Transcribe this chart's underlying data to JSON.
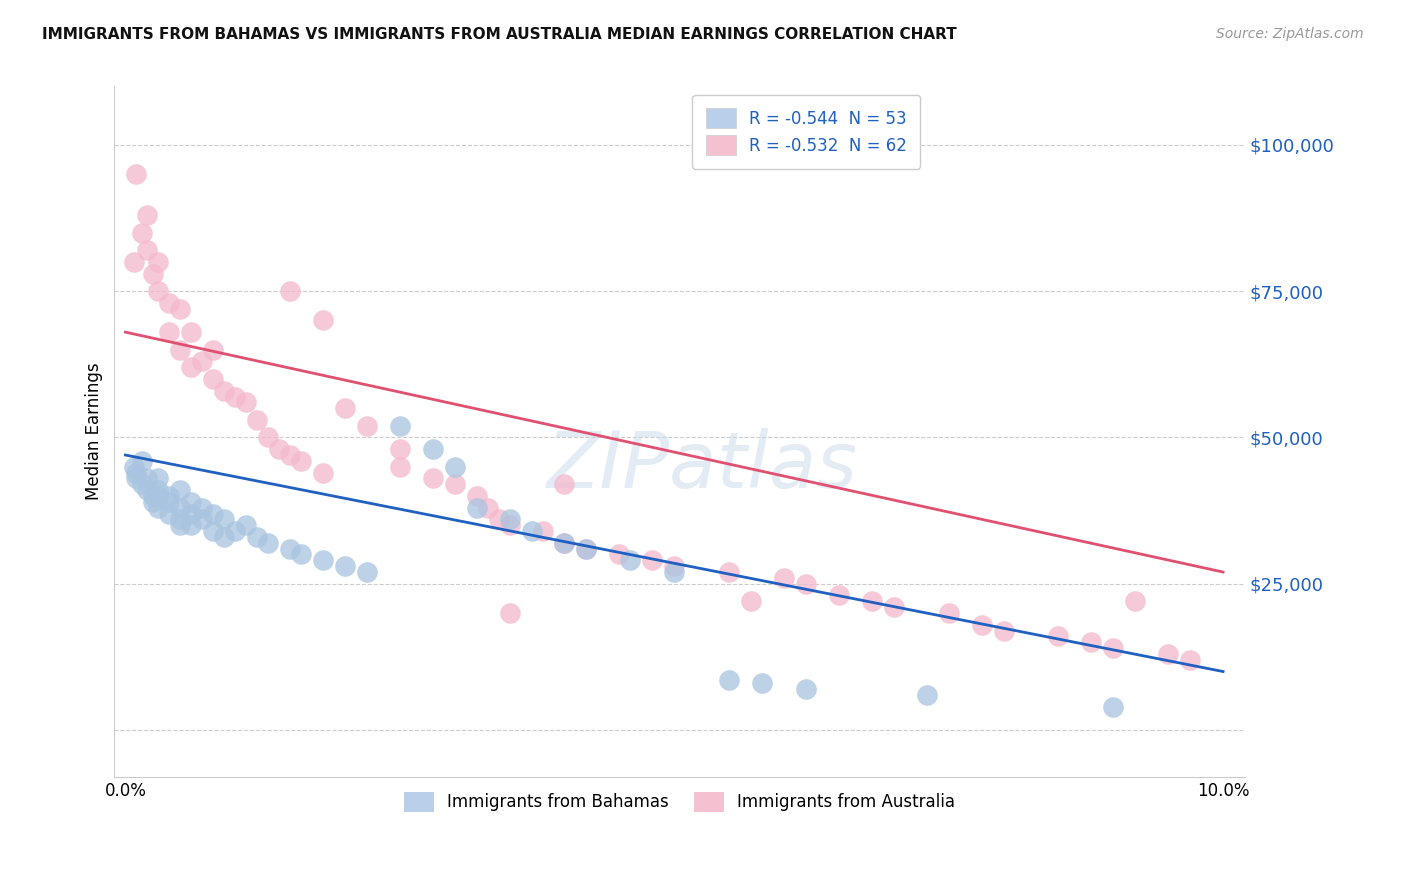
{
  "title": "IMMIGRANTS FROM BAHAMAS VS IMMIGRANTS FROM AUSTRALIA MEDIAN EARNINGS CORRELATION CHART",
  "source": "Source: ZipAtlas.com",
  "ylabel": "Median Earnings",
  "ytick_vals": [
    0,
    25000,
    50000,
    75000,
    100000
  ],
  "ytick_labels": [
    "",
    "$25,000",
    "$50,000",
    "$75,000",
    "$100,000"
  ],
  "xlim": [
    -0.001,
    0.102
  ],
  "ylim": [
    -8000,
    110000
  ],
  "legend_labels": [
    "R = -0.544  N = 53",
    "R = -0.532  N = 62"
  ],
  "legend_colors": [
    "#b8d0ea",
    "#f5c0d0"
  ],
  "legend_text_color": "#2060c0",
  "bottom_legend_labels": [
    "Immigrants from Bahamas",
    "Immigrants from Australia"
  ],
  "blue_line": [
    0.0,
    47000,
    0.1,
    10000
  ],
  "pink_line": [
    0.0,
    68000,
    0.1,
    27000
  ],
  "watermark": "ZIPatlas",
  "blue_color": "#a8c4e0",
  "pink_color": "#f4b8cb",
  "blue_line_color": "#2060c0",
  "pink_line_color": "#e05070",
  "blue_scatter_x": [
    0.0008,
    0.001,
    0.001,
    0.0015,
    0.0015,
    0.002,
    0.002,
    0.0025,
    0.0025,
    0.003,
    0.003,
    0.003,
    0.003,
    0.004,
    0.004,
    0.004,
    0.005,
    0.005,
    0.005,
    0.005,
    0.006,
    0.006,
    0.006,
    0.007,
    0.007,
    0.008,
    0.008,
    0.009,
    0.009,
    0.01,
    0.011,
    0.012,
    0.013,
    0.015,
    0.016,
    0.018,
    0.02,
    0.022,
    0.025,
    0.028,
    0.03,
    0.032,
    0.035,
    0.037,
    0.04,
    0.042,
    0.046,
    0.05,
    0.055,
    0.058,
    0.062,
    0.073,
    0.09
  ],
  "blue_scatter_y": [
    45000,
    44000,
    43000,
    46000,
    42000,
    41000,
    43000,
    40000,
    39000,
    43000,
    41000,
    40000,
    38000,
    40000,
    39000,
    37000,
    41000,
    38000,
    36000,
    35000,
    39000,
    37000,
    35000,
    38000,
    36000,
    37000,
    34000,
    36000,
    33000,
    34000,
    35000,
    33000,
    32000,
    31000,
    30000,
    29000,
    28000,
    27000,
    52000,
    48000,
    45000,
    38000,
    36000,
    34000,
    32000,
    31000,
    29000,
    27000,
    8500,
    8000,
    7000,
    6000,
    4000
  ],
  "pink_scatter_x": [
    0.0008,
    0.001,
    0.0015,
    0.002,
    0.002,
    0.0025,
    0.003,
    0.003,
    0.004,
    0.004,
    0.005,
    0.005,
    0.006,
    0.006,
    0.007,
    0.008,
    0.008,
    0.009,
    0.01,
    0.011,
    0.012,
    0.013,
    0.014,
    0.015,
    0.015,
    0.016,
    0.018,
    0.018,
    0.02,
    0.022,
    0.025,
    0.025,
    0.028,
    0.03,
    0.032,
    0.033,
    0.034,
    0.035,
    0.038,
    0.04,
    0.042,
    0.045,
    0.048,
    0.05,
    0.055,
    0.057,
    0.06,
    0.062,
    0.065,
    0.068,
    0.07,
    0.075,
    0.078,
    0.08,
    0.085,
    0.088,
    0.09,
    0.092,
    0.095,
    0.097,
    0.035,
    0.04
  ],
  "pink_scatter_y": [
    80000,
    95000,
    85000,
    88000,
    82000,
    78000,
    80000,
    75000,
    73000,
    68000,
    72000,
    65000,
    68000,
    62000,
    63000,
    60000,
    65000,
    58000,
    57000,
    56000,
    53000,
    50000,
    48000,
    47000,
    75000,
    46000,
    44000,
    70000,
    55000,
    52000,
    48000,
    45000,
    43000,
    42000,
    40000,
    38000,
    36000,
    35000,
    34000,
    32000,
    31000,
    30000,
    29000,
    28000,
    27000,
    22000,
    26000,
    25000,
    23000,
    22000,
    21000,
    20000,
    18000,
    17000,
    16000,
    15000,
    14000,
    22000,
    13000,
    12000,
    20000,
    42000
  ]
}
